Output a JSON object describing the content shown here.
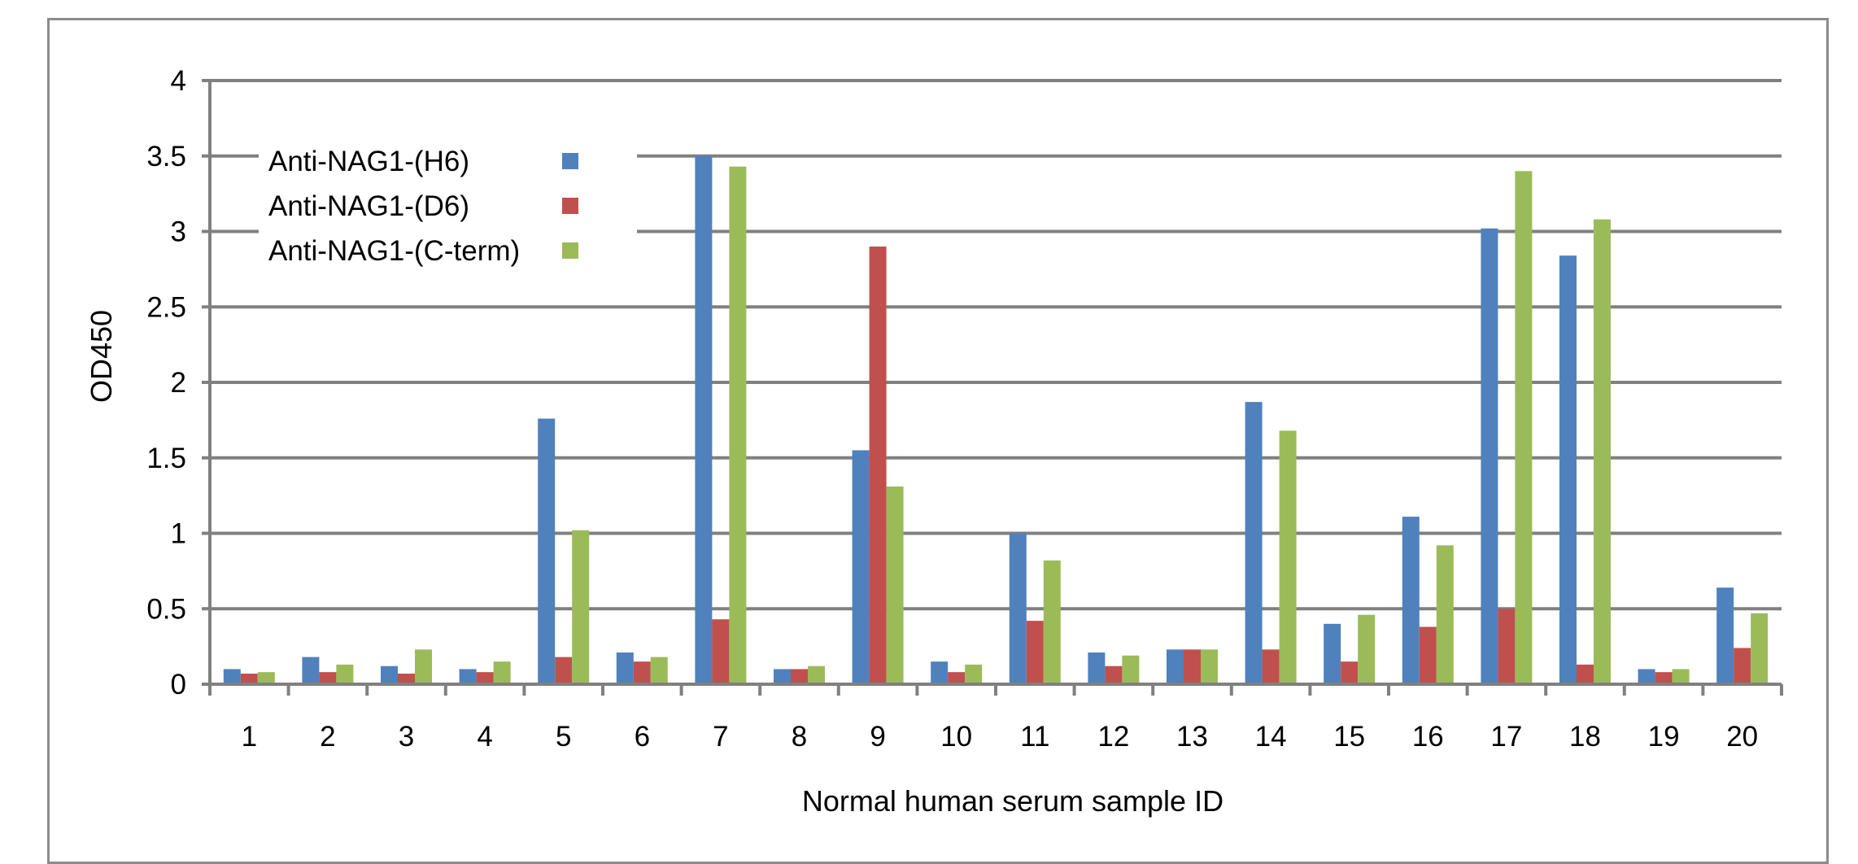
{
  "chart_data": {
    "type": "bar",
    "title": "",
    "xlabel": "Normal human serum sample ID",
    "ylabel": "OD450",
    "ylim": [
      0,
      4
    ],
    "yticks": [
      0,
      0.5,
      1,
      1.5,
      2,
      2.5,
      3,
      3.5,
      4
    ],
    "ytick_labels": [
      "0",
      "0.5",
      "1",
      "1.5",
      "2",
      "2.5",
      "3",
      "3.5",
      "4"
    ],
    "grid": true,
    "legend_position": "top-left",
    "categories": [
      "1",
      "2",
      "3",
      "4",
      "5",
      "6",
      "7",
      "8",
      "9",
      "10",
      "11",
      "12",
      "13",
      "14",
      "15",
      "16",
      "17",
      "18",
      "19",
      "20"
    ],
    "series": [
      {
        "name": "Anti-NAG1-(H6)",
        "color": "#4f81bd",
        "values": [
          0.1,
          0.18,
          0.12,
          0.1,
          1.76,
          0.21,
          3.5,
          0.1,
          1.55,
          0.15,
          1.0,
          0.21,
          0.23,
          1.87,
          0.4,
          1.11,
          3.02,
          2.84,
          0.1,
          0.64
        ]
      },
      {
        "name": "Anti-NAG1-(D6)",
        "color": "#c0504d",
        "values": [
          0.07,
          0.08,
          0.07,
          0.08,
          0.18,
          0.15,
          0.43,
          0.1,
          2.9,
          0.08,
          0.42,
          0.12,
          0.23,
          0.23,
          0.15,
          0.38,
          0.5,
          0.13,
          0.08,
          0.24
        ]
      },
      {
        "name": "Anti-NAG1-(C-term)",
        "color": "#9bbb59",
        "values": [
          0.08,
          0.13,
          0.23,
          0.15,
          1.02,
          0.18,
          3.43,
          0.12,
          1.31,
          0.13,
          0.82,
          0.19,
          0.23,
          1.68,
          0.46,
          0.92,
          3.4,
          3.08,
          0.1,
          0.47
        ]
      }
    ]
  }
}
